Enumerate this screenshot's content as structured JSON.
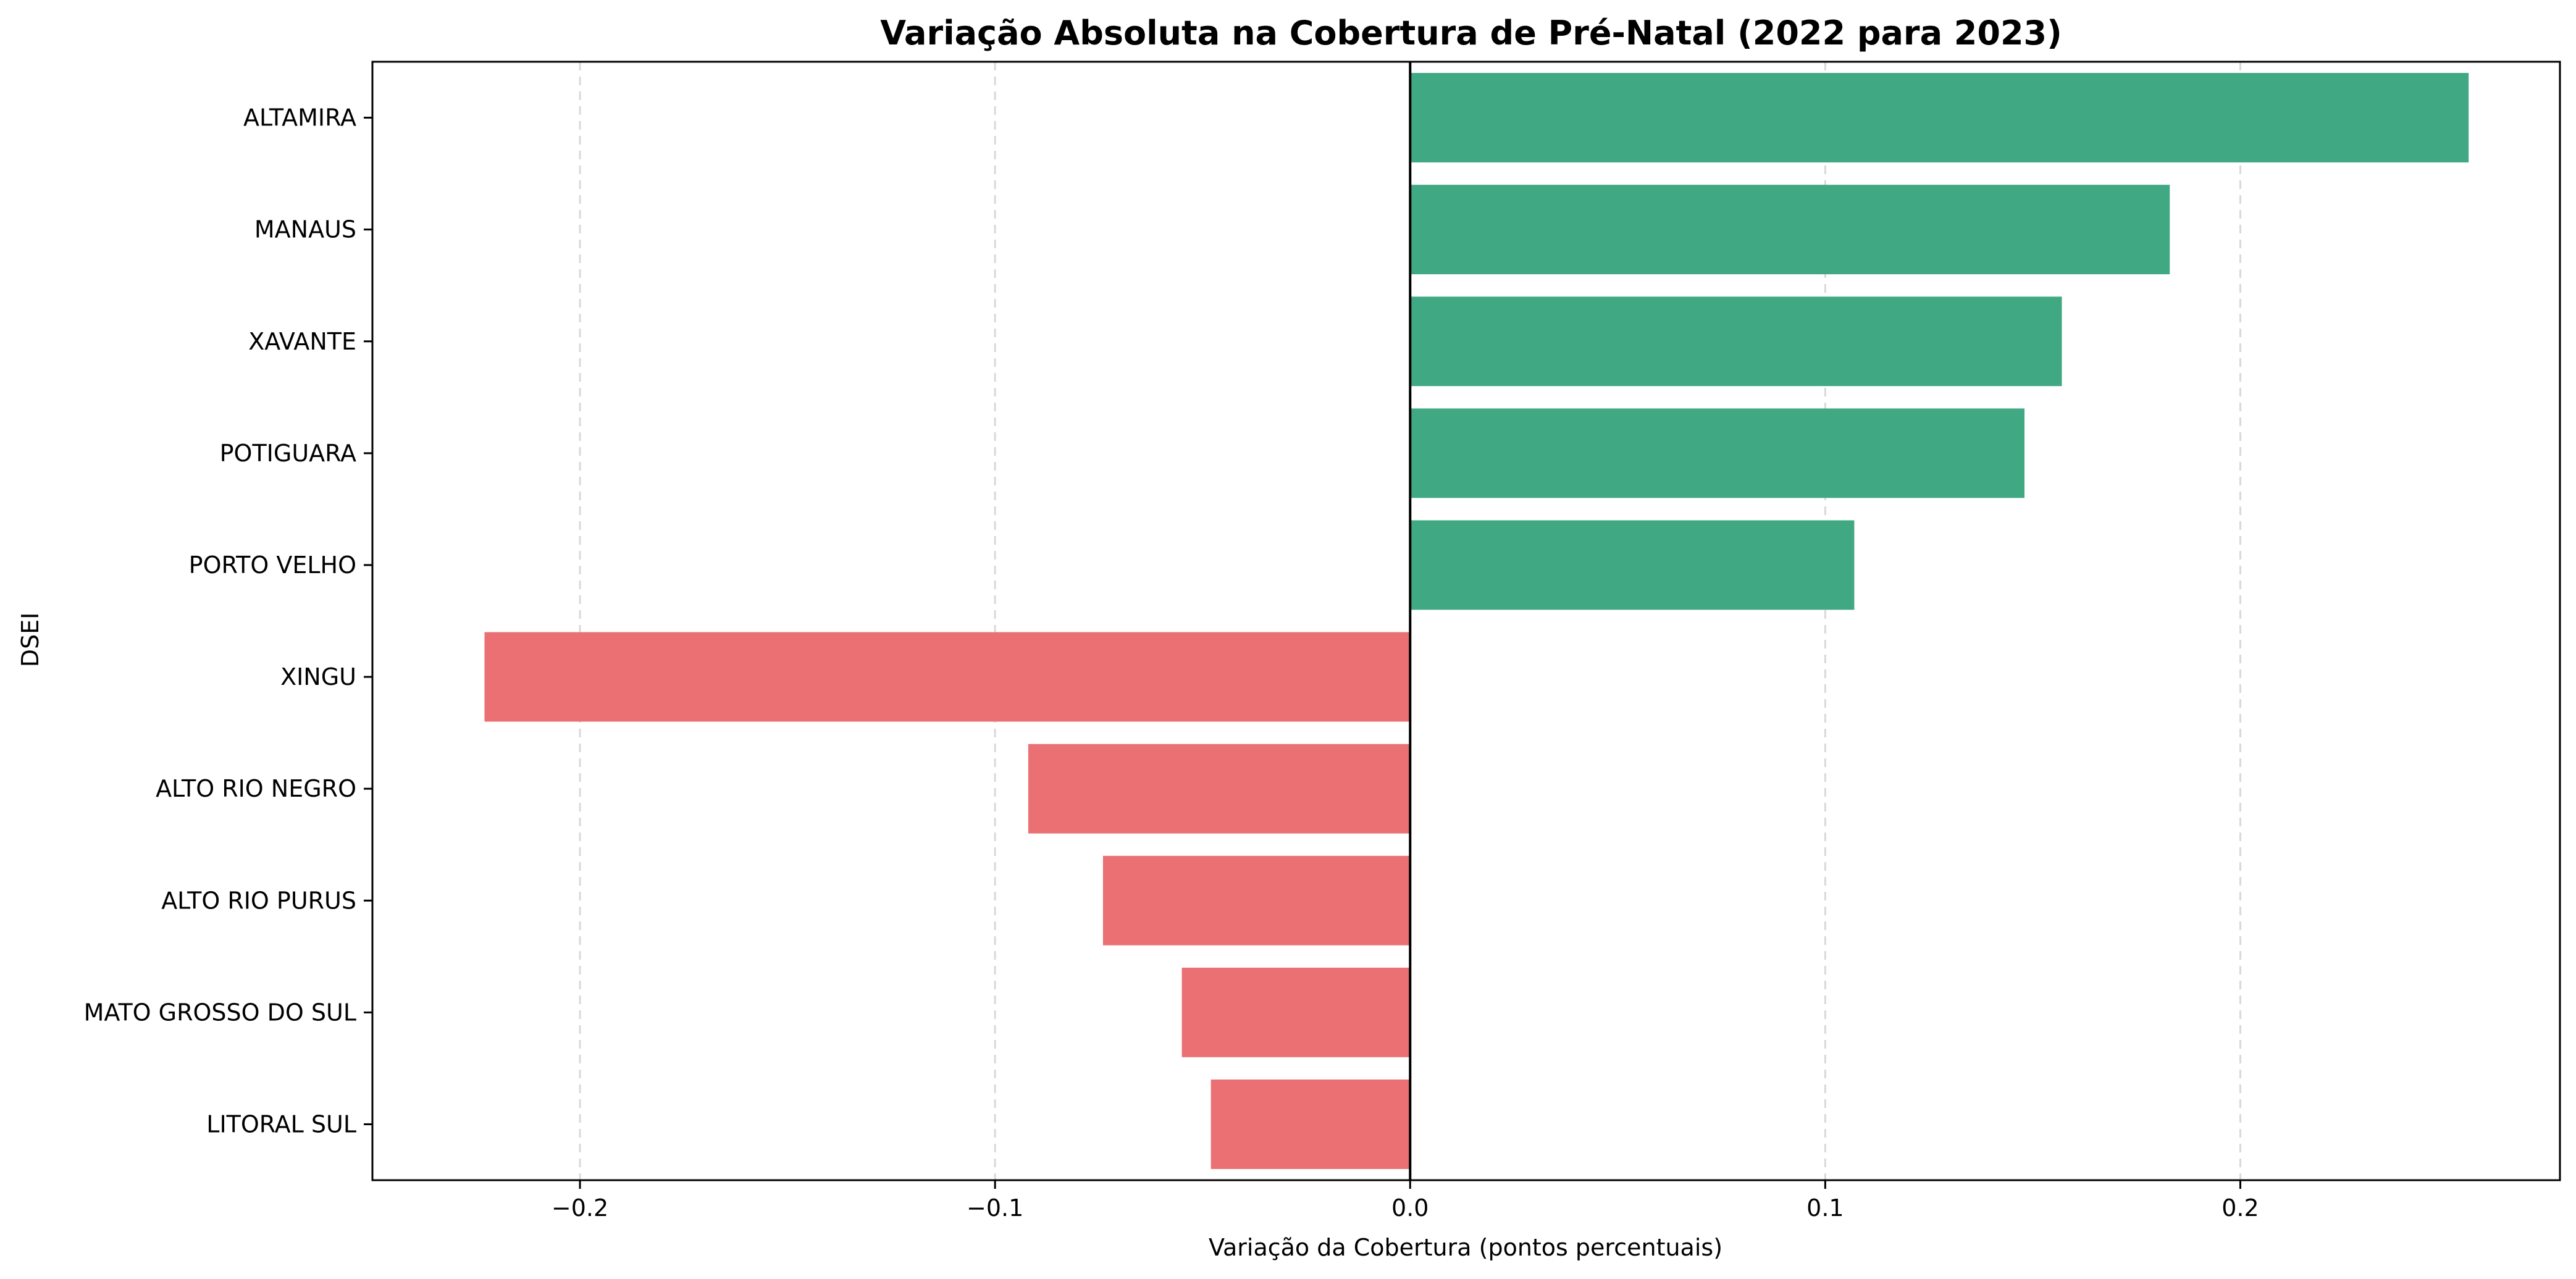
{
  "chart_data": {
    "type": "bar",
    "orientation": "horizontal",
    "title": "Variação Absoluta na Cobertura de Pré-Natal (2022 para 2023)",
    "xlabel": "Variação da Cobertura (pontos percentuais)",
    "ylabel": "DSEI",
    "xlim": [
      -0.25,
      0.277
    ],
    "xticks": [
      {
        "value": -0.2,
        "label": "−0.2"
      },
      {
        "value": -0.1,
        "label": "−0.1"
      },
      {
        "value": 0.0,
        "label": "0.0"
      },
      {
        "value": 0.1,
        "label": "0.1"
      },
      {
        "value": 0.2,
        "label": "0.2"
      }
    ],
    "grid": "x-dashed",
    "categories": [
      "ALTAMIRA",
      "MANAUS",
      "XAVANTE",
      "POTIGUARA",
      "PORTO VELHO",
      "XINGU",
      "ALTO RIO NEGRO",
      "ALTO RIO PURUS",
      "MATO GROSSO DO SUL",
      "LITORAL SUL"
    ],
    "values": [
      0.255,
      0.183,
      0.157,
      0.148,
      0.107,
      -0.223,
      -0.092,
      -0.074,
      -0.055,
      -0.048
    ],
    "colors": {
      "positive": "#40a883",
      "negative": "#ea7073"
    }
  }
}
